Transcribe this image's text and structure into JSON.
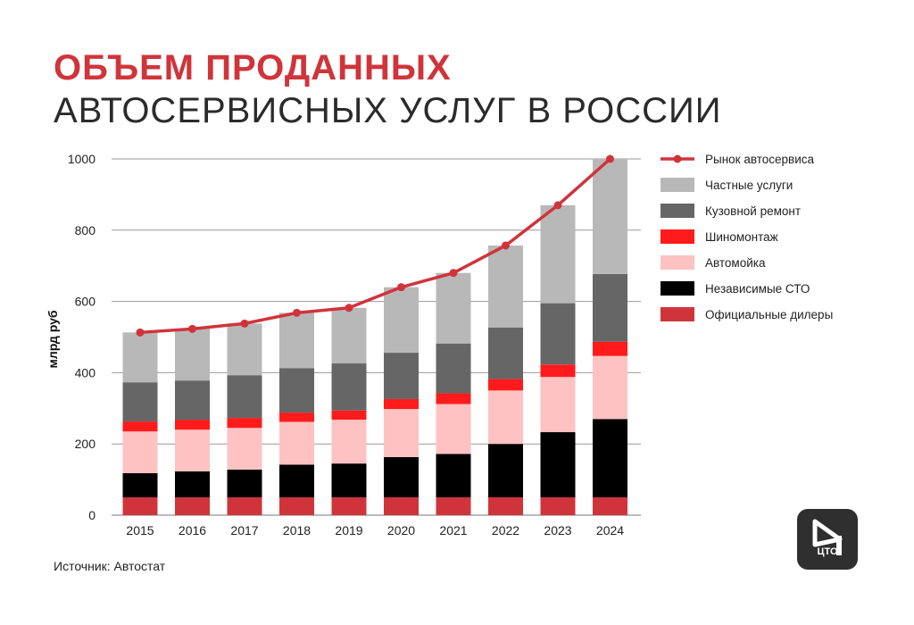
{
  "title": {
    "line1": "ОБЪЕМ ПРОДАННЫХ",
    "line2": "АВТОСЕРВИСНЫХ УСЛУГ В РОССИИ"
  },
  "source": "Источник: Автостат",
  "logo": {
    "text": "ЦТО",
    "icon": "play-logo-icon"
  },
  "chart_data": {
    "type": "bar",
    "stacked": true,
    "categories": [
      "2015",
      "2016",
      "2017",
      "2018",
      "2019",
      "2020",
      "2021",
      "2022",
      "2023",
      "2024"
    ],
    "ylabel": "млрд руб",
    "ylim": [
      0,
      1000
    ],
    "yticks": [
      0,
      200,
      400,
      600,
      800,
      1000
    ],
    "grid": true,
    "legend_position": "right",
    "series": [
      {
        "name": "Официальные дилеры",
        "color": "#d0343b",
        "values": [
          50,
          50,
          50,
          50,
          50,
          50,
          50,
          50,
          50,
          50
        ]
      },
      {
        "name": "Независимые СТО",
        "color": "#000000",
        "values": [
          68,
          73,
          78,
          92,
          95,
          113,
          122,
          150,
          183,
          220
        ]
      },
      {
        "name": "Автомойка",
        "color": "#ffc2c2",
        "values": [
          117,
          117,
          117,
          120,
          123,
          135,
          140,
          150,
          155,
          177
        ]
      },
      {
        "name": "Шиномонтаж",
        "color": "#ff1b1b",
        "values": [
          28,
          28,
          28,
          26,
          26,
          28,
          30,
          32,
          35,
          40
        ]
      },
      {
        "name": "Кузовной ремонт",
        "color": "#666666",
        "values": [
          110,
          110,
          120,
          125,
          132,
          130,
          140,
          145,
          172,
          190
        ]
      },
      {
        "name": "Частные услуги",
        "color": "#b8b8b8",
        "values": [
          140,
          145,
          145,
          155,
          156,
          184,
          198,
          230,
          275,
          323
        ]
      }
    ],
    "line": {
      "name": "Рынок автосервиса",
      "color": "#d0343b",
      "values": [
        513,
        523,
        538,
        568,
        582,
        640,
        680,
        757,
        870,
        1000
      ]
    }
  }
}
